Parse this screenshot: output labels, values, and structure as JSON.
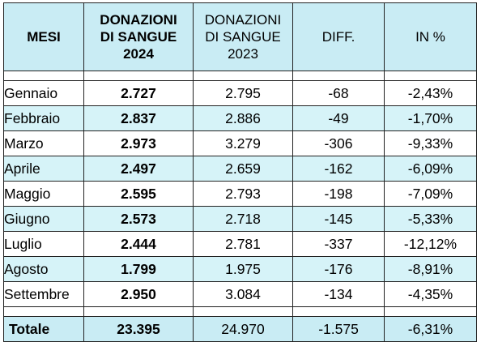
{
  "headers": {
    "col1": "MESI",
    "col2": [
      "DONAZIONI",
      "DI SANGUE",
      "2024"
    ],
    "col3": [
      "DONAZIONI",
      "DI SANGUE",
      "2023"
    ],
    "col4": "DIFF.",
    "col5": "IN %"
  },
  "rows": [
    {
      "month": "Gennaio",
      "v2024": "2.727",
      "v2023": "2.795",
      "diff": "-68",
      "pct": "-2,43%"
    },
    {
      "month": "Febbraio",
      "v2024": "2.837",
      "v2023": "2.886",
      "diff": "-49",
      "pct": "-1,70%"
    },
    {
      "month": "Marzo",
      "v2024": "2.973",
      "v2023": "3.279",
      "diff": "-306",
      "pct": "-9,33%"
    },
    {
      "month": "Aprile",
      "v2024": "2.497",
      "v2023": "2.659",
      "diff": "-162",
      "pct": "-6,09%"
    },
    {
      "month": "Maggio",
      "v2024": "2.595",
      "v2023": "2.793",
      "diff": "-198",
      "pct": "-7,09%"
    },
    {
      "month": "Giugno",
      "v2024": "2.573",
      "v2023": "2.718",
      "diff": "-145",
      "pct": "-5,33%"
    },
    {
      "month": "Luglio",
      "v2024": "2.444",
      "v2023": "2.781",
      "diff": "-337",
      "pct": "-12,12%"
    },
    {
      "month": "Agosto",
      "v2024": "1.799",
      "v2023": "1.975",
      "diff": "-176",
      "pct": "-8,91%"
    },
    {
      "month": "Settembre",
      "v2024": "2.950",
      "v2023": "3.084",
      "diff": "-134",
      "pct": "-4,35%"
    }
  ],
  "total": {
    "label": "Totale",
    "v2024": "23.395",
    "v2023": "24.970",
    "diff": "-1.575",
    "pct": "-6,31%"
  },
  "colors": {
    "header_bg": "#c9ecf4",
    "row_alt_bg": "#d6f3f8",
    "border": "#222222"
  }
}
